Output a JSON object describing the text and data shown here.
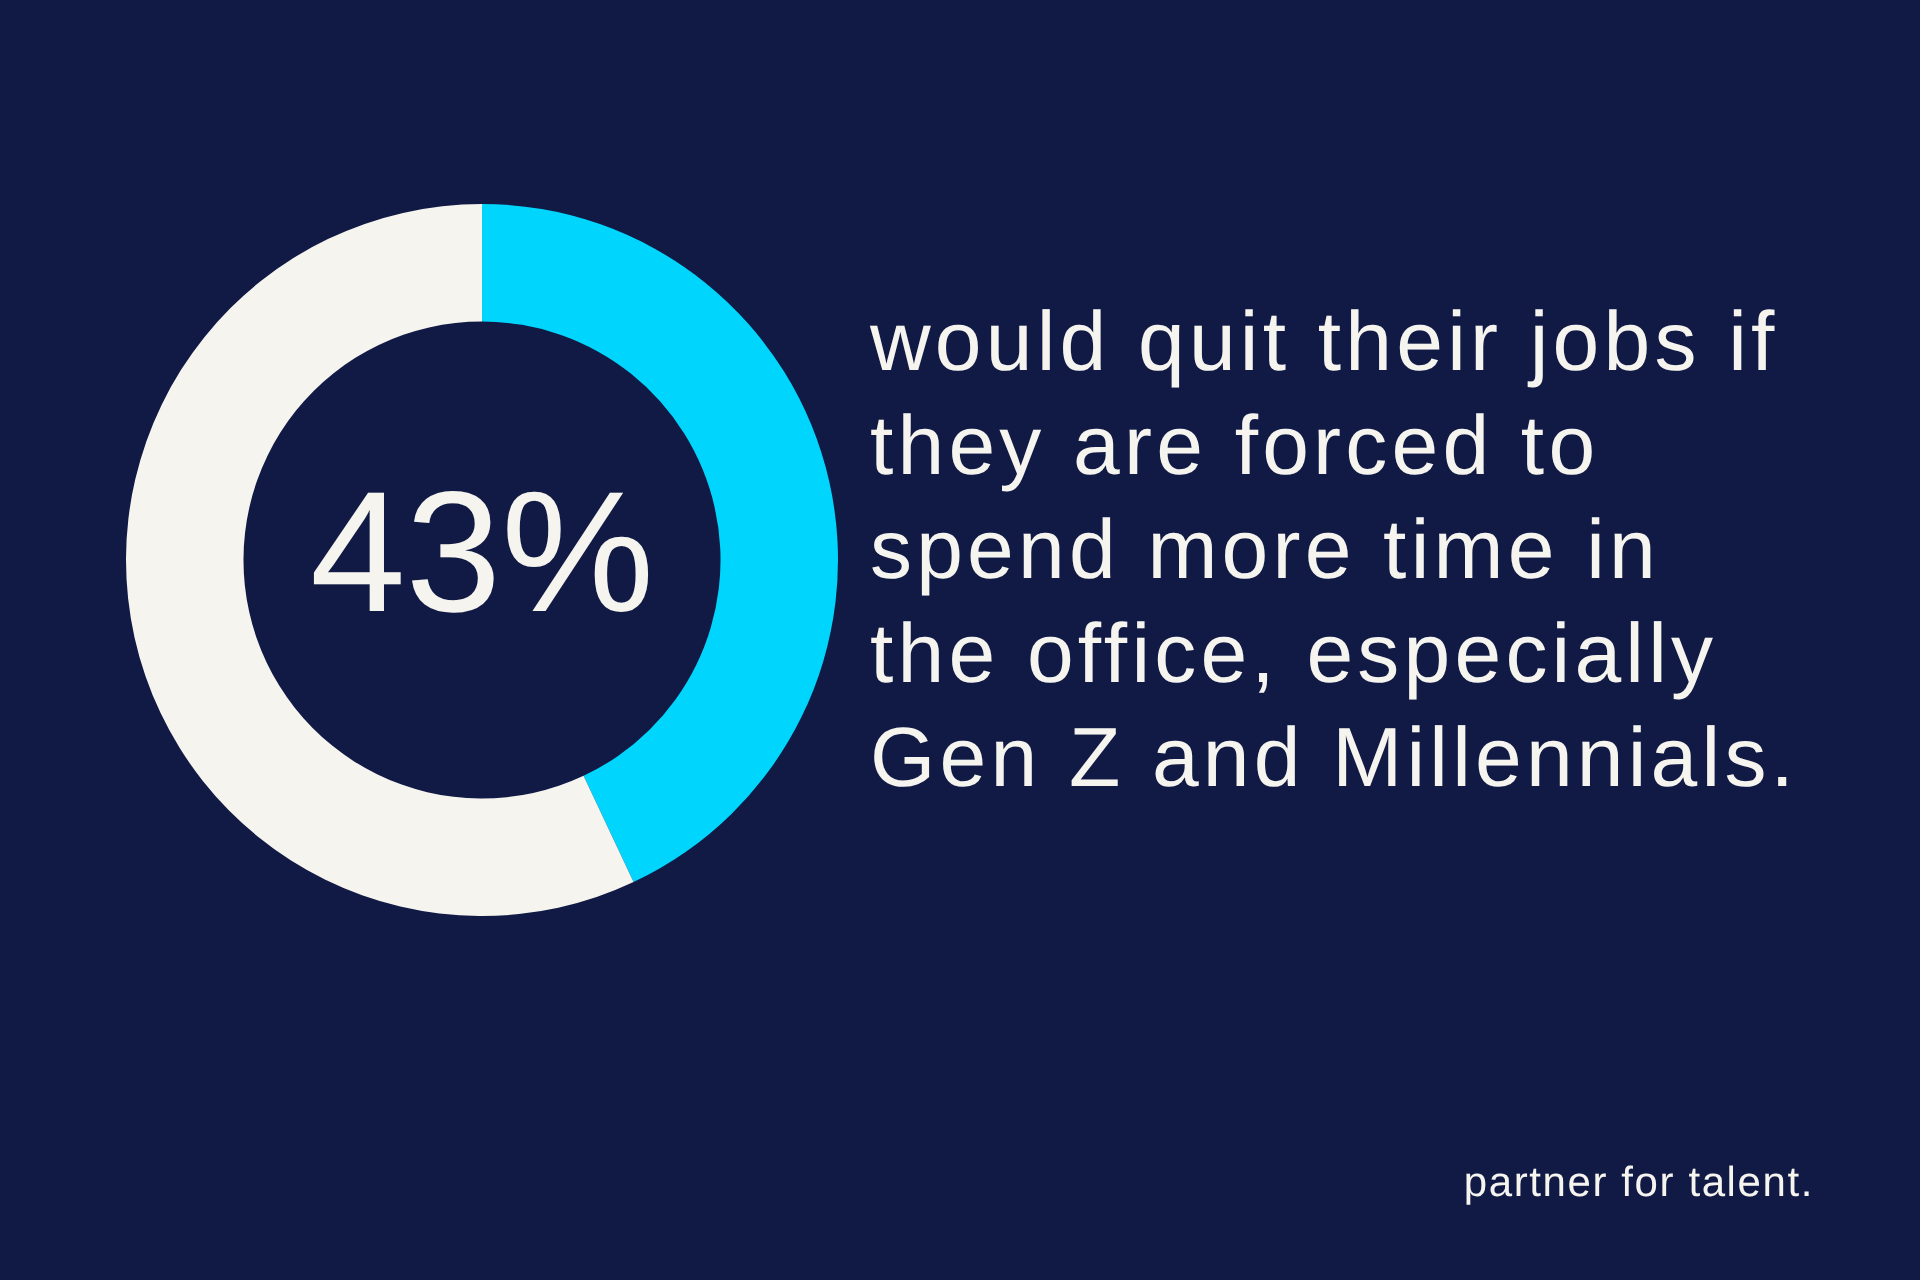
{
  "chart_data": {
    "type": "donut",
    "title": "would quit their jobs if they are forced to spend more time in the office, especially Gen Z and Millennials.",
    "categories": [
      null,
      null
    ],
    "values": [
      43,
      57
    ],
    "colors": [
      "#00d5fd",
      "#f5f4ef"
    ],
    "value_labels": [
      "43%",
      null
    ],
    "annotations": [
      "partner for talent."
    ]
  }
}
